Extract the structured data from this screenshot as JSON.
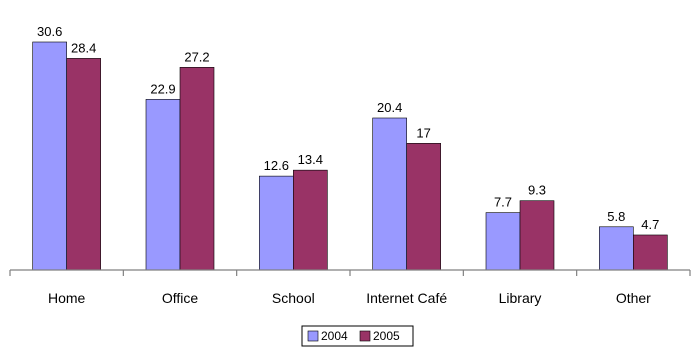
{
  "chart_data": {
    "type": "bar",
    "title": "",
    "xlabel": "",
    "ylabel": "",
    "categories": [
      "Home",
      "Office",
      "School",
      "Internet Café",
      "Library",
      "Other"
    ],
    "series": [
      {
        "name": "2004",
        "values": [
          30.6,
          22.9,
          12.6,
          20.4,
          7.7,
          5.8
        ],
        "color": "#9999ff"
      },
      {
        "name": "2005",
        "values": [
          28.4,
          27.2,
          13.4,
          17,
          9.3,
          4.7
        ],
        "color": "#993366"
      }
    ],
    "ylim": [
      0,
      30.6
    ],
    "grid": false,
    "legend": "bottom"
  }
}
